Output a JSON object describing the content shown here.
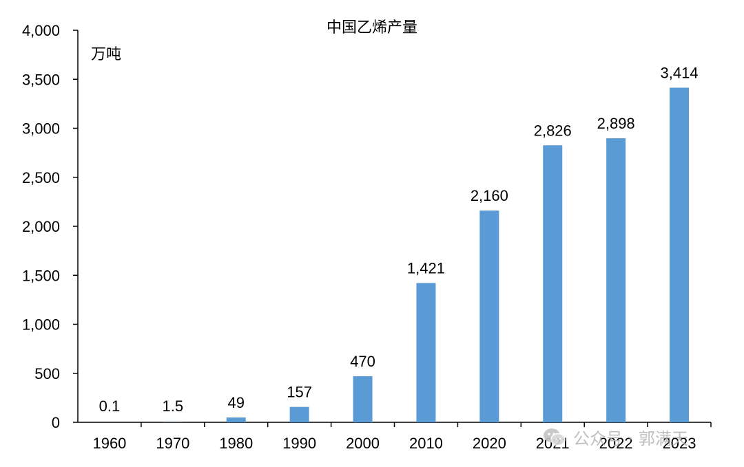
{
  "chart_data": {
    "type": "bar",
    "title": "中国乙烯产量",
    "unit": "万吨",
    "categories": [
      "1960",
      "1970",
      "1980",
      "1990",
      "2000",
      "2010",
      "2020",
      "2021",
      "2022",
      "2023"
    ],
    "values": [
      0.1,
      1.5,
      49,
      157,
      470,
      1421,
      2160,
      2826,
      2898,
      3414
    ],
    "value_labels": [
      "0.1",
      "1.5",
      "49",
      "157",
      "470",
      "1,421",
      "2,160",
      "2,826",
      "2,898",
      "3,414"
    ],
    "ylim": [
      0,
      4000
    ],
    "yticks": [
      0,
      500,
      1000,
      1500,
      2000,
      2500,
      3000,
      3500,
      4000
    ],
    "ytick_labels": [
      "0",
      "500",
      "1,000",
      "1,500",
      "2,000",
      "2,500",
      "3,000",
      "3,500",
      "4,000"
    ],
    "bar_color": "#5b9bd5",
    "grid": false,
    "legend": "none"
  },
  "watermark": {
    "icon": "wechat-icon",
    "text": "公众号 · 郭满天"
  }
}
